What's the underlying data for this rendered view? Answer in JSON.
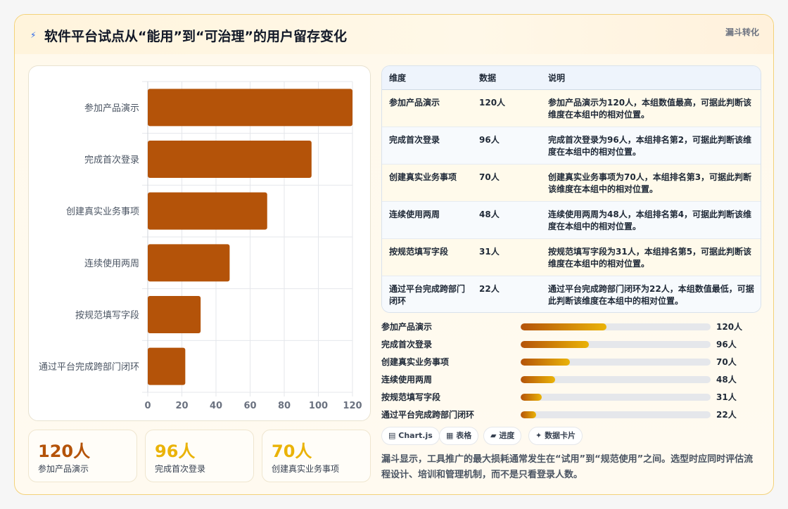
{
  "header": {
    "title": "软件平台试点从“能用”到“可治理”的用户留存变化",
    "badge": "漏斗转化"
  },
  "chart_data": {
    "type": "bar",
    "orientation": "horizontal",
    "categories": [
      "参加产品演示",
      "完成首次登录",
      "创建真实业务事项",
      "连续使用两周",
      "按规范填写字段",
      "通过平台完成跨部门闭环"
    ],
    "values": [
      120,
      96,
      70,
      48,
      31,
      22
    ],
    "xlim": [
      0,
      120
    ],
    "xticks": [
      0,
      20,
      40,
      60,
      80,
      100,
      120
    ],
    "grid": true,
    "bar_color": "#b45309"
  },
  "kpis": [
    {
      "value": "120人",
      "label": "参加产品演示",
      "color": "#b45309"
    },
    {
      "value": "96人",
      "label": "完成首次登录",
      "color": "#eab308"
    },
    {
      "value": "70人",
      "label": "创建真实业务事项",
      "color": "#eab308"
    }
  ],
  "table": {
    "headers": [
      "维度",
      "数据",
      "说明"
    ],
    "rows": [
      {
        "dim": "参加产品演示",
        "val": "120人",
        "desc": "参加产品演示为120人，本组数值最高，可据此判断该维度在本组中的相对位置。"
      },
      {
        "dim": "完成首次登录",
        "val": "96人",
        "desc": "完成首次登录为96人，本组排名第2，可据此判断该维度在本组中的相对位置。"
      },
      {
        "dim": "创建真实业务事项",
        "val": "70人",
        "desc": "创建真实业务事项为70人，本组排名第3，可据此判断该维度在本组中的相对位置。"
      },
      {
        "dim": "连续使用两周",
        "val": "48人",
        "desc": "连续使用两周为48人，本组排名第4，可据此判断该维度在本组中的相对位置。"
      },
      {
        "dim": "按规范填写字段",
        "val": "31人",
        "desc": "按规范填写字段为31人，本组排名第5，可据此判断该维度在本组中的相对位置。"
      },
      {
        "dim": "通过平台完成跨部门闭环",
        "val": "22人",
        "desc": "通过平台完成跨部门闭环为22人，本组数值最低，可据此判断该维度在本组中的相对位置。"
      }
    ]
  },
  "progress": [
    {
      "label": "参加产品演示",
      "value": "120人",
      "fraction": 0.45
    },
    {
      "label": "完成首次登录",
      "value": "96人",
      "fraction": 0.36
    },
    {
      "label": "创建真实业务事项",
      "value": "70人",
      "fraction": 0.26
    },
    {
      "label": "连续使用两周",
      "value": "48人",
      "fraction": 0.18
    },
    {
      "label": "按规范填写字段",
      "value": "31人",
      "fraction": 0.11
    },
    {
      "label": "通过平台完成跨部门闭环",
      "value": "22人",
      "fraction": 0.08
    }
  ],
  "chips": [
    {
      "icon": "▤",
      "label": "Chart.js"
    },
    {
      "icon": "▦",
      "label": "表格"
    },
    {
      "icon": "▰",
      "label": "进度"
    },
    {
      "icon": "✦",
      "label": "数据卡片"
    }
  ],
  "note": "漏斗显示，工具推广的最大损耗通常发生在“试用”到“规范使用”之间。选型时应同时评估流程设计、培训和管理机制，而不是只看登录人数。"
}
